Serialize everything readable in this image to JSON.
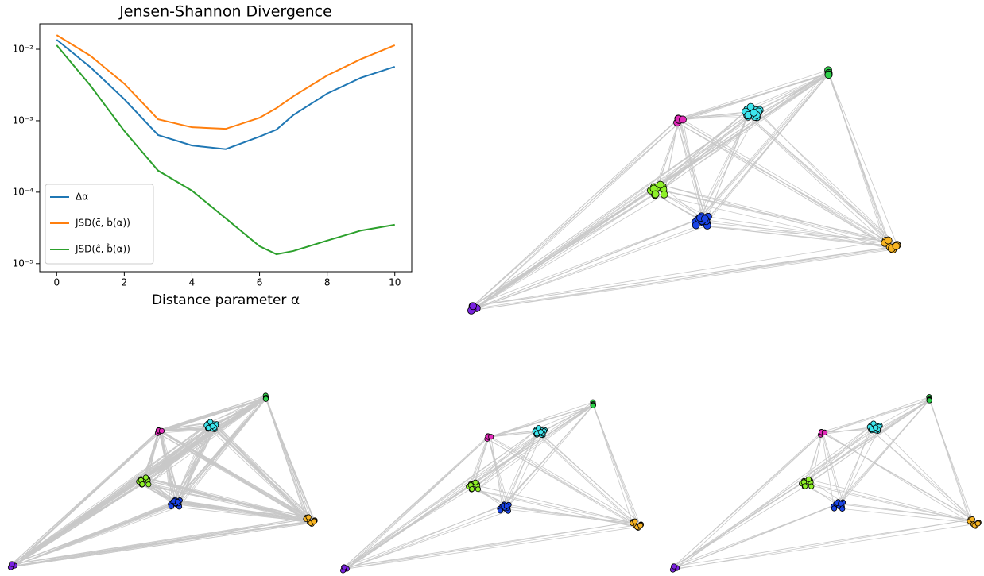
{
  "chart_data": {
    "type": "line",
    "title": "Jensen-Shannon Divergence",
    "x_label": "Distance parameter α",
    "x": [
      0,
      1,
      2,
      3,
      4,
      5,
      6,
      6.5,
      7,
      8,
      9,
      10
    ],
    "series": [
      {
        "name": "Δα",
        "color": "#1f77b4",
        "values": [
          0.0136,
          0.0056,
          0.002,
          0.00063,
          0.00045,
          0.0004,
          0.0006,
          0.00075,
          0.0012,
          0.0024,
          0.004,
          0.0057
        ]
      },
      {
        "name": "JSD(c̄, b̂(α))",
        "color": "#ff7f0e",
        "values": [
          0.0158,
          0.0081,
          0.0033,
          0.00105,
          0.00081,
          0.00077,
          0.0011,
          0.0015,
          0.0022,
          0.0043,
          0.0073,
          0.0114
        ]
      },
      {
        "name": "JSD(ĉ, b̂(α))",
        "color": "#2ca02c",
        "values": [
          0.0114,
          0.0031,
          0.00072,
          0.0002,
          0.000105,
          4.3e-05,
          1.75e-05,
          1.35e-05,
          1.5e-05,
          2.1e-05,
          2.9e-05,
          3.5e-05
        ]
      }
    ],
    "log_y": true,
    "xlim": [
      -0.5,
      10.5
    ],
    "ylim": [
      7.7e-06,
      0.0227
    ],
    "xticks": [
      0,
      2,
      4,
      6,
      8,
      10
    ],
    "yticks": [
      {
        "value": 1e-05,
        "label": "10⁻⁵"
      },
      {
        "value": 0.0001,
        "label": "10⁻⁴"
      },
      {
        "value": 0.001,
        "label": "10⁻³"
      },
      {
        "value": 0.01,
        "label": "10⁻²"
      }
    ],
    "legend": "lower left"
  }
}
